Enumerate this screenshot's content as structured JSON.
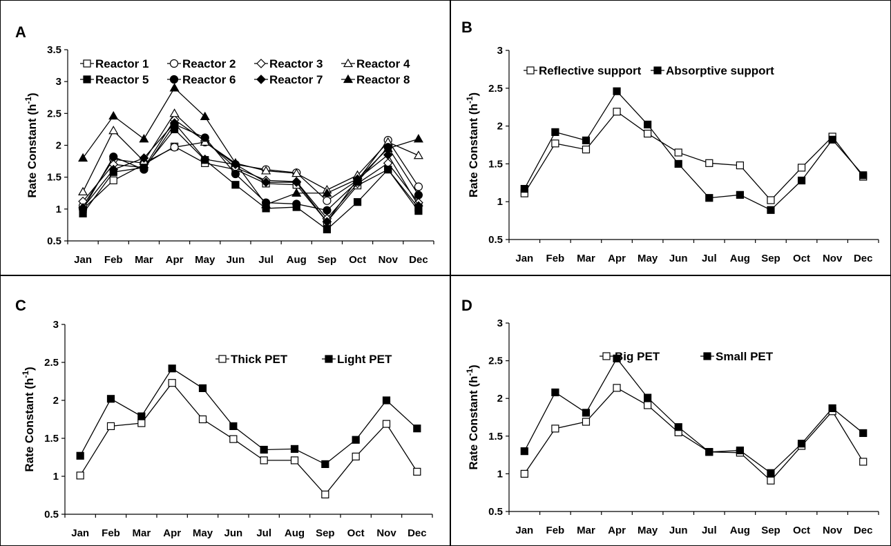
{
  "chart_data": [
    {
      "id": "A",
      "panel_label": "A",
      "type": "line",
      "categories": [
        "Jan",
        "Feb",
        "Mar",
        "Apr",
        "May",
        "Jun",
        "Jul",
        "Aug",
        "Sep",
        "Oct",
        "Nov",
        "Dec"
      ],
      "ylabel": "Rate Constant (h",
      "ylabel_sup": "-1",
      "ylabel_close": ")",
      "ylim": [
        0.5,
        3.5
      ],
      "yticks": [
        "0.5",
        "1",
        "1.5",
        "2",
        "2.5",
        "3",
        "3.5"
      ],
      "grid": false,
      "legend": {
        "placement": "top",
        "columns": 4
      },
      "series": [
        {
          "name": "Reactor 1",
          "marker": "square-open",
          "values": [
            1.0,
            1.45,
            1.7,
            1.98,
            1.72,
            1.62,
            1.4,
            1.38,
            0.8,
            1.37,
            1.62,
            1.02
          ]
        },
        {
          "name": "Reactor 2",
          "marker": "circle-open",
          "values": [
            1.05,
            1.78,
            1.72,
            1.97,
            2.05,
            1.7,
            1.62,
            1.57,
            1.13,
            1.45,
            2.08,
            1.35
          ]
        },
        {
          "name": "Reactor 3",
          "marker": "diamond-open",
          "values": [
            1.12,
            1.7,
            1.65,
            2.4,
            2.07,
            1.65,
            1.45,
            1.43,
            0.85,
            1.4,
            1.72,
            1.1
          ]
        },
        {
          "name": "Reactor 4",
          "marker": "triangle-open",
          "values": [
            1.27,
            2.23,
            1.75,
            2.5,
            2.05,
            1.72,
            1.6,
            1.56,
            1.3,
            1.53,
            2.05,
            1.84
          ]
        },
        {
          "name": "Reactor 5",
          "marker": "square-filled",
          "values": [
            0.93,
            1.58,
            1.65,
            2.25,
            1.77,
            1.38,
            1.01,
            1.03,
            0.68,
            1.11,
            1.62,
            0.97
          ]
        },
        {
          "name": "Reactor 6",
          "marker": "circle-filled",
          "values": [
            1.0,
            1.82,
            1.62,
            2.33,
            2.12,
            1.55,
            1.1,
            1.08,
            0.98,
            1.43,
            1.97,
            1.22
          ]
        },
        {
          "name": "Reactor 7",
          "marker": "diamond-filled",
          "values": [
            1.02,
            1.62,
            1.8,
            2.35,
            1.78,
            1.7,
            1.42,
            1.42,
            0.8,
            1.47,
            1.85,
            1.05
          ]
        },
        {
          "name": "Reactor 8",
          "marker": "triangle-filled",
          "values": [
            1.8,
            2.46,
            2.1,
            2.9,
            2.45,
            1.72,
            1.07,
            1.25,
            1.25,
            1.47,
            1.95,
            2.1
          ]
        }
      ]
    },
    {
      "id": "B",
      "panel_label": "B",
      "type": "line",
      "categories": [
        "Jan",
        "Feb",
        "Mar",
        "Apr",
        "May",
        "Jun",
        "Jul",
        "Aug",
        "Sep",
        "Oct",
        "Nov",
        "Dec"
      ],
      "ylabel": "Rate Constant (h",
      "ylabel_sup": "-1",
      "ylabel_close": ")",
      "ylim": [
        0.5,
        3
      ],
      "yticks": [
        "0.5",
        "1",
        "1.5",
        "2",
        "2.5",
        "3"
      ],
      "grid": false,
      "legend": {
        "placement": "top",
        "columns": 2
      },
      "series": [
        {
          "name": "Reflective support",
          "marker": "square-open",
          "values": [
            1.11,
            1.77,
            1.69,
            2.19,
            1.9,
            1.65,
            1.51,
            1.48,
            1.02,
            1.45,
            1.86,
            1.33
          ]
        },
        {
          "name": "Absorptive support",
          "marker": "square-filled",
          "values": [
            1.17,
            1.92,
            1.81,
            2.46,
            2.02,
            1.5,
            1.05,
            1.09,
            0.89,
            1.28,
            1.82,
            1.35
          ]
        }
      ]
    },
    {
      "id": "C",
      "panel_label": "C",
      "type": "line",
      "categories": [
        "Jan",
        "Feb",
        "Mar",
        "Apr",
        "May",
        "Jun",
        "Jul",
        "Aug",
        "Sep",
        "Oct",
        "Nov",
        "Dec"
      ],
      "ylabel": "Rate Constant (h",
      "ylabel_sup": "-1",
      "ylabel_close": ")",
      "ylim": [
        0.5,
        3
      ],
      "yticks": [
        "0.5",
        "1",
        "1.5",
        "2",
        "2.5",
        "3"
      ],
      "grid": false,
      "legend": {
        "placement": "top-right",
        "columns": 2
      },
      "series": [
        {
          "name": "Thick PET",
          "marker": "square-open",
          "values": [
            1.01,
            1.66,
            1.7,
            2.23,
            1.75,
            1.49,
            1.21,
            1.21,
            0.76,
            1.26,
            1.69,
            1.06
          ]
        },
        {
          "name": "Light PET",
          "marker": "square-filled",
          "values": [
            1.27,
            2.02,
            1.79,
            2.42,
            2.16,
            1.66,
            1.35,
            1.36,
            1.16,
            1.48,
            2.0,
            1.63
          ]
        }
      ]
    },
    {
      "id": "D",
      "panel_label": "D",
      "type": "line",
      "categories": [
        "Jan",
        "Feb",
        "Mar",
        "Apr",
        "May",
        "Jun",
        "Jul",
        "Aug",
        "Sep",
        "Oct",
        "Nov",
        "Dec"
      ],
      "ylabel": "Rate Constant (h",
      "ylabel_sup": "-1",
      "ylabel_close": ")",
      "ylim": [
        0.5,
        3
      ],
      "yticks": [
        "0.5",
        "1",
        "1.5",
        "2",
        "2.5",
        "3"
      ],
      "grid": false,
      "legend": {
        "placement": "top-right",
        "columns": 2
      },
      "series": [
        {
          "name": "Big PET",
          "marker": "square-open",
          "values": [
            1.0,
            1.6,
            1.69,
            2.14,
            1.91,
            1.55,
            1.29,
            1.28,
            0.91,
            1.37,
            1.83,
            1.16
          ]
        },
        {
          "name": "Small PET",
          "marker": "square-filled",
          "values": [
            1.3,
            2.08,
            1.81,
            2.53,
            2.01,
            1.62,
            1.29,
            1.31,
            1.01,
            1.4,
            1.87,
            1.54
          ]
        }
      ]
    }
  ]
}
